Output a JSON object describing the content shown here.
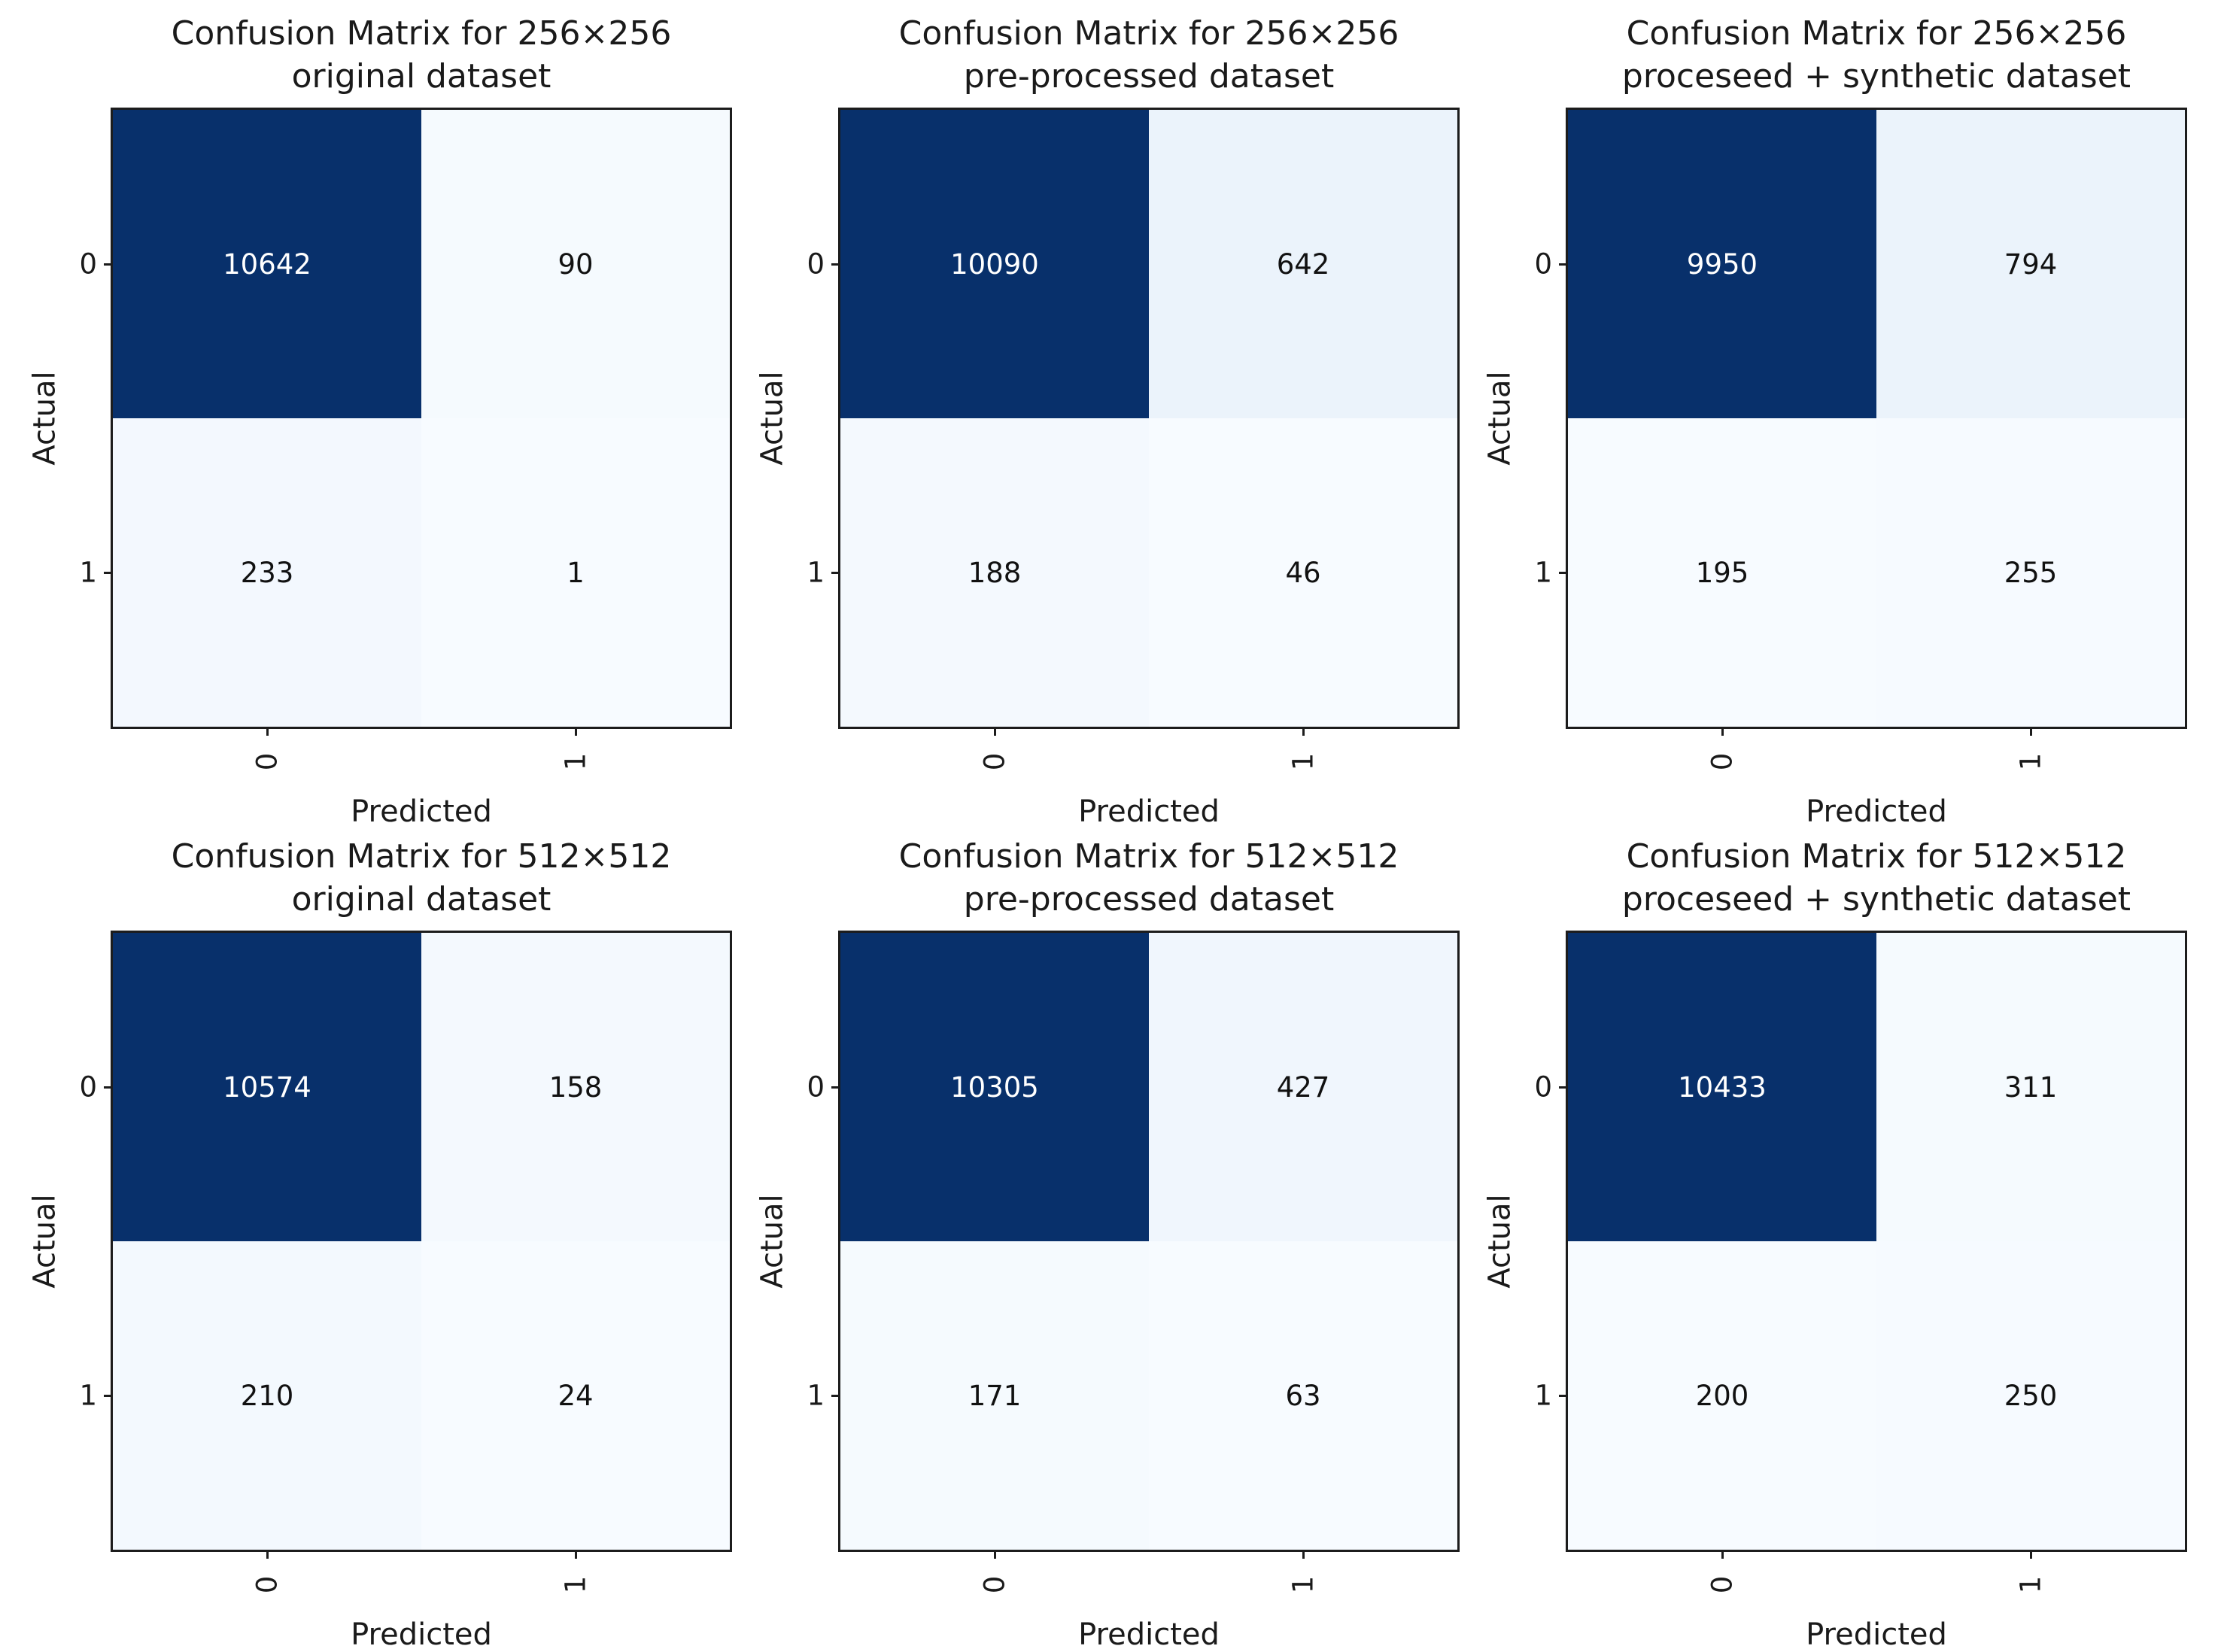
{
  "figure": {
    "background": "#ffffff",
    "frame_color": "#1c1c1c",
    "text_color": "#1a1a1a",
    "colormap_name": "Blues",
    "blues_anchors": [
      "#f7fbff",
      "#deebf7",
      "#c6dbef",
      "#9ecae1",
      "#6baed6",
      "#4292c6",
      "#2171b5",
      "#08519c",
      "#08306b"
    ],
    "cell_text_light": "#ffffff",
    "cell_text_dark": "#111111"
  },
  "chart_data": [
    {
      "type": "heatmap",
      "title_line1": "Confusion Matrix for 256×256",
      "title_line2": "original dataset",
      "xlabel": "Predicted",
      "ylabel": "Actual",
      "x_tick_labels": [
        "0",
        "1"
      ],
      "y_tick_labels": [
        "0",
        "1"
      ],
      "rows": [
        [
          10642,
          90
        ],
        [
          233,
          1
        ]
      ]
    },
    {
      "type": "heatmap",
      "title_line1": "Confusion Matrix for 256×256",
      "title_line2": "pre-processed dataset",
      "xlabel": "Predicted",
      "ylabel": "Actual",
      "x_tick_labels": [
        "0",
        "1"
      ],
      "y_tick_labels": [
        "0",
        "1"
      ],
      "rows": [
        [
          10090,
          642
        ],
        [
          188,
          46
        ]
      ]
    },
    {
      "type": "heatmap",
      "title_line1": "Confusion Matrix for 256×256",
      "title_line2": "proceseed + synthetic dataset",
      "xlabel": "Predicted",
      "ylabel": "Actual",
      "x_tick_labels": [
        "0",
        "1"
      ],
      "y_tick_labels": [
        "0",
        "1"
      ],
      "rows": [
        [
          9950,
          794
        ],
        [
          195,
          255
        ]
      ]
    },
    {
      "type": "heatmap",
      "title_line1": "Confusion Matrix for 512×512",
      "title_line2": "original dataset",
      "xlabel": "Predicted",
      "ylabel": "Actual",
      "x_tick_labels": [
        "0",
        "1"
      ],
      "y_tick_labels": [
        "0",
        "1"
      ],
      "rows": [
        [
          10574,
          158
        ],
        [
          210,
          24
        ]
      ]
    },
    {
      "type": "heatmap",
      "title_line1": "Confusion Matrix for 512×512",
      "title_line2": "pre-processed dataset",
      "xlabel": "Predicted",
      "ylabel": "Actual",
      "x_tick_labels": [
        "0",
        "1"
      ],
      "y_tick_labels": [
        "0",
        "1"
      ],
      "rows": [
        [
          10305,
          427
        ],
        [
          171,
          63
        ]
      ]
    },
    {
      "type": "heatmap",
      "title_line1": "Confusion Matrix for 512×512",
      "title_line2": "proceseed + synthetic dataset",
      "xlabel": "Predicted",
      "ylabel": "Actual",
      "x_tick_labels": [
        "0",
        "1"
      ],
      "y_tick_labels": [
        "0",
        "1"
      ],
      "rows": [
        [
          10433,
          311
        ],
        [
          200,
          250
        ]
      ]
    }
  ]
}
